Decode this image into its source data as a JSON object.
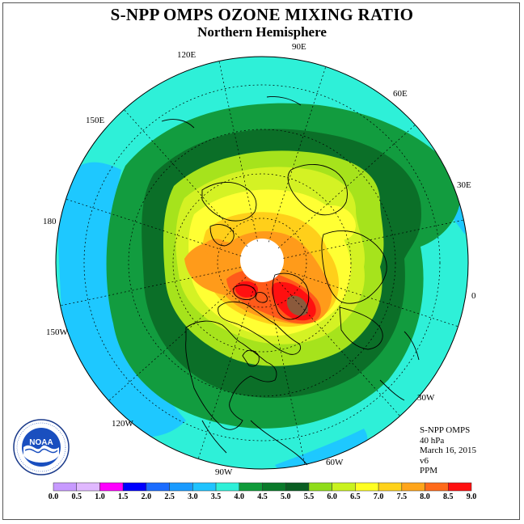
{
  "title": "S-NPP OMPS OZONE MIXING RATIO",
  "subtitle": "Northern Hemisphere",
  "longitude_labels": [
    "90E",
    "60E",
    "30E",
    "0",
    "30W",
    "60W",
    "90W",
    "120W",
    "150W",
    "180",
    "150E",
    "120E"
  ],
  "info": {
    "instrument": "S-NPP OMPS",
    "level": "40 hPa",
    "date": "March 16, 2015",
    "version": "v6",
    "units": "PPM"
  },
  "colorbar": {
    "ticks": [
      "0.0",
      "0.5",
      "1.0",
      "1.5",
      "2.0",
      "2.5",
      "3.0",
      "3.5",
      "4.0",
      "4.5",
      "5.0",
      "5.5",
      "6.0",
      "6.5",
      "7.0",
      "7.5",
      "8.0",
      "8.5",
      "9.0"
    ],
    "colors": [
      "#c79aff",
      "#e0b8ff",
      "#ff00ff",
      "#0000ff",
      "#1b6cff",
      "#1a9bff",
      "#1fc3ff",
      "#2ef0d8",
      "#0f9b3a",
      "#0a7a2a",
      "#0a5e22",
      "#8fdc1a",
      "#c9f21e",
      "#ffff22",
      "#ffd21a",
      "#ffa51a",
      "#ff6a1a",
      "#ff1010",
      "#8b5a3c"
    ]
  },
  "colors": {
    "ocean_outer": "#1ec8ff",
    "level_3_5": "#2ef0d8",
    "level_4_0": "#129c3f",
    "level_4_5": "#0b6f28",
    "level_5_5": "#a6e31c",
    "level_6_0": "#d4f224",
    "level_6_5": "#ffff33",
    "level_7_0": "#ffcf1a",
    "level_7_5": "#ff9b1a",
    "level_8_0": "#ff5a1a",
    "level_8_5": "#ff1010",
    "level_9_0": "#8b5a3c",
    "no_data": "#ffffff"
  },
  "logo_text": "NOAA"
}
